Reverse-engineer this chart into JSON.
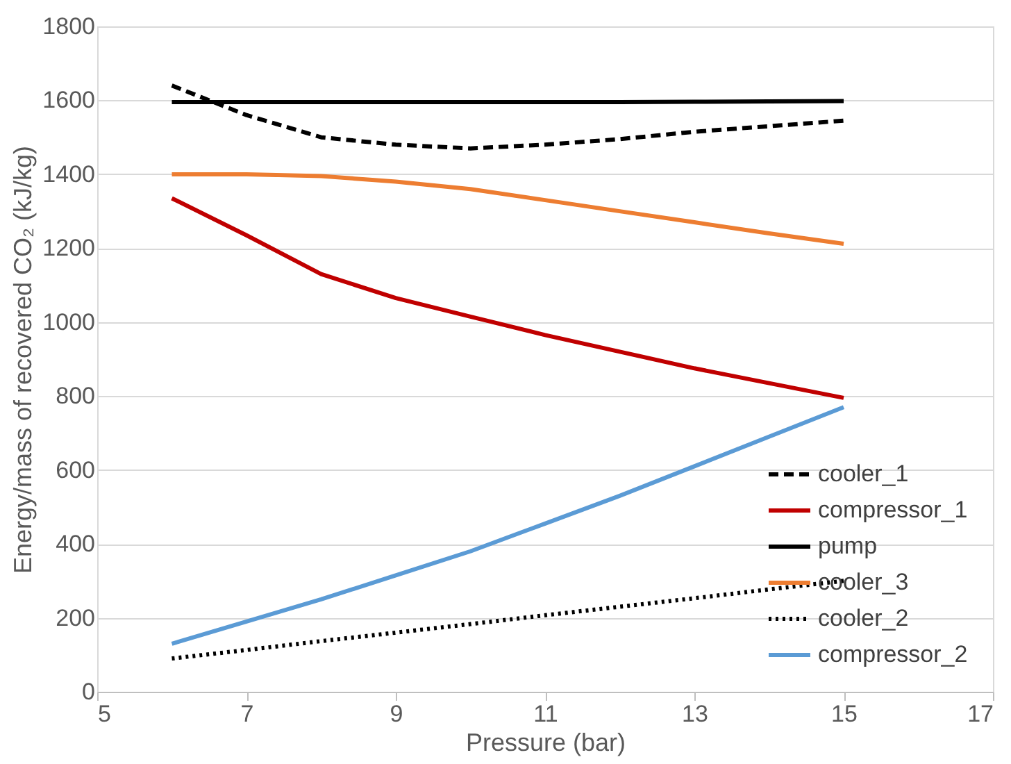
{
  "chart_data": {
    "type": "line",
    "xlabel": "Pressure (bar)",
    "ylabel": "Energy/mass of recovered CO₂ (kJ/kg)",
    "x": [
      6,
      7,
      8,
      9,
      10,
      11,
      12,
      13,
      14,
      15
    ],
    "xlim": [
      5,
      17
    ],
    "xticks": [
      5,
      7,
      9,
      11,
      13,
      15,
      17
    ],
    "ylim": [
      0,
      1800
    ],
    "yticks": [
      0,
      200,
      400,
      600,
      800,
      1000,
      1200,
      1400,
      1600,
      1800
    ],
    "grid": "y",
    "legend": "bottom right",
    "marker": "none",
    "series": [
      {
        "name": "cooler_1",
        "color": "#000000",
        "line_style": "dashed",
        "values": [
          1640,
          1560,
          1500,
          1480,
          1470,
          1480,
          1495,
          1515,
          1530,
          1545
        ]
      },
      {
        "name": "compressor_1",
        "color": "#c00000",
        "line_style": "solid",
        "values": [
          1335,
          1235,
          1130,
          1065,
          1015,
          965,
          920,
          875,
          835,
          795
        ]
      },
      {
        "name": "pump",
        "color": "#000000",
        "line_style": "solid",
        "values": [
          1595,
          1595,
          1595,
          1595,
          1595,
          1595,
          1595,
          1596,
          1597,
          1598
        ]
      },
      {
        "name": "cooler_3",
        "color": "#ed7d31",
        "line_style": "solid",
        "values": [
          1400,
          1400,
          1395,
          1380,
          1360,
          1330,
          1300,
          1270,
          1240,
          1212
        ]
      },
      {
        "name": "cooler_2",
        "color": "#000000",
        "line_style": "dotted",
        "values": [
          90,
          113,
          137,
          160,
          183,
          207,
          230,
          253,
          277,
          300
        ]
      },
      {
        "name": "compressor_2",
        "color": "#5b9bd5",
        "line_style": "solid",
        "values": [
          130,
          190,
          250,
          315,
          380,
          455,
          530,
          610,
          690,
          770
        ]
      }
    ]
  }
}
